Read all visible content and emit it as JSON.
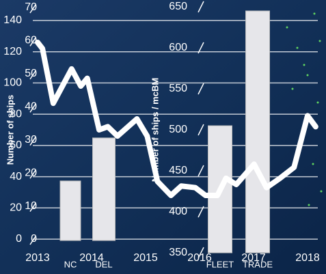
{
  "chart_data": {
    "type": "line",
    "ylabel": "Number of ships",
    "y2label": "Number of ships / mcBM",
    "xlim": [
      2013,
      2018
    ],
    "xticks": [
      2013,
      2014,
      2015,
      2016,
      2017,
      2018
    ],
    "ylim": [
      0,
      140
    ],
    "yticks": [
      0,
      20,
      40,
      60,
      80,
      100,
      120,
      140
    ],
    "y2lim": [
      350,
      650
    ],
    "y2ticks": [
      350,
      400,
      450,
      500,
      550,
      600,
      650
    ],
    "y3lim": [
      0,
      70
    ],
    "y3ticks": [
      0,
      10,
      20,
      30,
      40,
      50,
      60,
      70
    ],
    "grid": true,
    "series": [
      {
        "color": "#ffffff",
        "x": [
          2013.0,
          2013.09,
          2013.29,
          2013.63,
          2013.8,
          2013.92,
          2014.14,
          2014.3,
          2014.48,
          2014.84,
          2015.03,
          2015.22,
          2015.47,
          2015.66,
          2015.92,
          2016.11,
          2016.33,
          2016.49,
          2016.68,
          2017.01,
          2017.24,
          2017.49,
          2017.75,
          2018.0,
          2018.15
        ],
        "values": [
          126,
          122,
          87,
          109,
          98,
          103,
          70,
          72,
          66,
          77,
          66,
          37,
          28,
          34,
          33,
          28,
          28,
          39,
          35,
          48,
          33,
          39,
          46,
          79,
          72
        ]
      }
    ],
    "bars": [
      {
        "name": "NC",
        "value": 18,
        "axis": "y3",
        "color": "#e6e6ea"
      },
      {
        "name": "DEL",
        "value": 31,
        "axis": "y3",
        "color": "#e6e6ea"
      },
      {
        "name": "FLEET",
        "value": 505,
        "axis": "y2",
        "color": "#e6e6ea"
      },
      {
        "name": "TRADE",
        "value": 645,
        "axis": "y2",
        "color": "#e6e6ea"
      }
    ]
  }
}
